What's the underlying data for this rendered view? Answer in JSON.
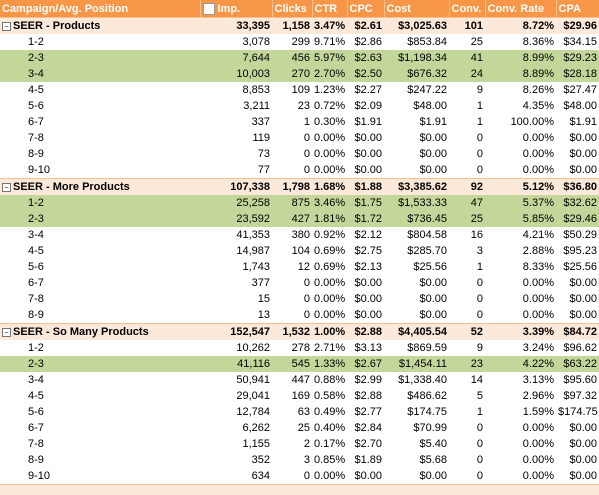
{
  "table": {
    "columns": [
      "Campaign/Avg. Position",
      "Imp.",
      "Clicks",
      "CTR",
      "CPC",
      "Cost",
      "Conv.",
      "Conv. Rate",
      "CPA"
    ],
    "groups": [
      {
        "label": "SEER  - Products",
        "totals": [
          "33,395",
          "1,158",
          "3.47%",
          "$2.61",
          "$3,025.63",
          "101",
          "8.72%",
          "$29.96"
        ],
        "rows": [
          {
            "label": "1-2",
            "cells": [
              "3,078",
              "299",
              "9.71%",
              "$2.86",
              "$853.84",
              "25",
              "8.36%",
              "$34.15"
            ]
          },
          {
            "label": "2-3",
            "cells": [
              "7,644",
              "456",
              "5.97%",
              "$2.63",
              "$1,198.34",
              "41",
              "8.99%",
              "$29.23"
            ],
            "highlight": true
          },
          {
            "label": "3-4",
            "cells": [
              "10,003",
              "270",
              "2.70%",
              "$2.50",
              "$676.32",
              "24",
              "8.89%",
              "$28.18"
            ],
            "highlight": true
          },
          {
            "label": "4-5",
            "cells": [
              "8,853",
              "109",
              "1.23%",
              "$2.27",
              "$247.22",
              "9",
              "8.26%",
              "$27.47"
            ]
          },
          {
            "label": "5-6",
            "cells": [
              "3,211",
              "23",
              "0.72%",
              "$2.09",
              "$48.00",
              "1",
              "4.35%",
              "$48.00"
            ]
          },
          {
            "label": "6-7",
            "cells": [
              "337",
              "1",
              "0.30%",
              "$1.91",
              "$1.91",
              "1",
              "100.00%",
              "$1.91"
            ]
          },
          {
            "label": "7-8",
            "cells": [
              "119",
              "0",
              "0.00%",
              "$0.00",
              "$0.00",
              "0",
              "0.00%",
              "$0.00"
            ]
          },
          {
            "label": "8-9",
            "cells": [
              "73",
              "0",
              "0.00%",
              "$0.00",
              "$0.00",
              "0",
              "0.00%",
              "$0.00"
            ]
          },
          {
            "label": "9-10",
            "cells": [
              "77",
              "0",
              "0.00%",
              "$0.00",
              "$0.00",
              "0",
              "0.00%",
              "$0.00"
            ]
          }
        ]
      },
      {
        "label": "SEER  - More Products",
        "totals": [
          "107,338",
          "1,798",
          "1.68%",
          "$1.88",
          "$3,385.62",
          "92",
          "5.12%",
          "$36.80"
        ],
        "rows": [
          {
            "label": "1-2",
            "cells": [
              "25,258",
              "875",
              "3.46%",
              "$1.75",
              "$1,533.33",
              "47",
              "5.37%",
              "$32.62"
            ],
            "highlight": true
          },
          {
            "label": "2-3",
            "cells": [
              "23,592",
              "427",
              "1.81%",
              "$1.72",
              "$736.45",
              "25",
              "5.85%",
              "$29.46"
            ],
            "highlight": true
          },
          {
            "label": "3-4",
            "cells": [
              "41,353",
              "380",
              "0.92%",
              "$2.12",
              "$804.58",
              "16",
              "4.21%",
              "$50.29"
            ]
          },
          {
            "label": "4-5",
            "cells": [
              "14,987",
              "104",
              "0.69%",
              "$2.75",
              "$285.70",
              "3",
              "2.88%",
              "$95.23"
            ]
          },
          {
            "label": "5-6",
            "cells": [
              "1,743",
              "12",
              "0.69%",
              "$2.13",
              "$25.56",
              "1",
              "8.33%",
              "$25.56"
            ]
          },
          {
            "label": "6-7",
            "cells": [
              "377",
              "0",
              "0.00%",
              "$0.00",
              "$0.00",
              "0",
              "0.00%",
              "$0.00"
            ]
          },
          {
            "label": "7-8",
            "cells": [
              "15",
              "0",
              "0.00%",
              "$0.00",
              "$0.00",
              "0",
              "0.00%",
              "$0.00"
            ]
          },
          {
            "label": "8-9",
            "cells": [
              "13",
              "0",
              "0.00%",
              "$0.00",
              "$0.00",
              "0",
              "0.00%",
              "$0.00"
            ]
          }
        ]
      },
      {
        "label": "SEER  - So Many Products",
        "totals": [
          "152,547",
          "1,532",
          "1.00%",
          "$2.88",
          "$4,405.54",
          "52",
          "3.39%",
          "$84.72"
        ],
        "rows": [
          {
            "label": "1-2",
            "cells": [
              "10,262",
              "278",
              "2.71%",
              "$3.13",
              "$869.59",
              "9",
              "3.24%",
              "$96.62"
            ]
          },
          {
            "label": "2-3",
            "cells": [
              "41,116",
              "545",
              "1.33%",
              "$2.67",
              "$1,454.11",
              "23",
              "4.22%",
              "$63.22"
            ],
            "highlight": true
          },
          {
            "label": "3-4",
            "cells": [
              "50,941",
              "447",
              "0.88%",
              "$2.99",
              "$1,338.40",
              "14",
              "3.13%",
              "$95.60"
            ]
          },
          {
            "label": "4-5",
            "cells": [
              "29,041",
              "169",
              "0.58%",
              "$2.88",
              "$486.62",
              "5",
              "2.96%",
              "$97.32"
            ]
          },
          {
            "label": "5-6",
            "cells": [
              "12,784",
              "63",
              "0.49%",
              "$2.77",
              "$174.75",
              "1",
              "1.59%",
              "$174.75"
            ]
          },
          {
            "label": "6-7",
            "cells": [
              "6,262",
              "25",
              "0.40%",
              "$2.84",
              "$70.99",
              "0",
              "0.00%",
              "$0.00"
            ]
          },
          {
            "label": "7-8",
            "cells": [
              "1,155",
              "2",
              "0.17%",
              "$2.70",
              "$5.40",
              "0",
              "0.00%",
              "$0.00"
            ]
          },
          {
            "label": "8-9",
            "cells": [
              "352",
              "3",
              "0.85%",
              "$1.89",
              "$5.68",
              "0",
              "0.00%",
              "$0.00"
            ]
          },
          {
            "label": "9-10",
            "cells": [
              "634",
              "0",
              "0.00%",
              "$0.00",
              "$0.00",
              "0",
              "0.00%",
              "$0.00"
            ]
          }
        ]
      }
    ]
  }
}
